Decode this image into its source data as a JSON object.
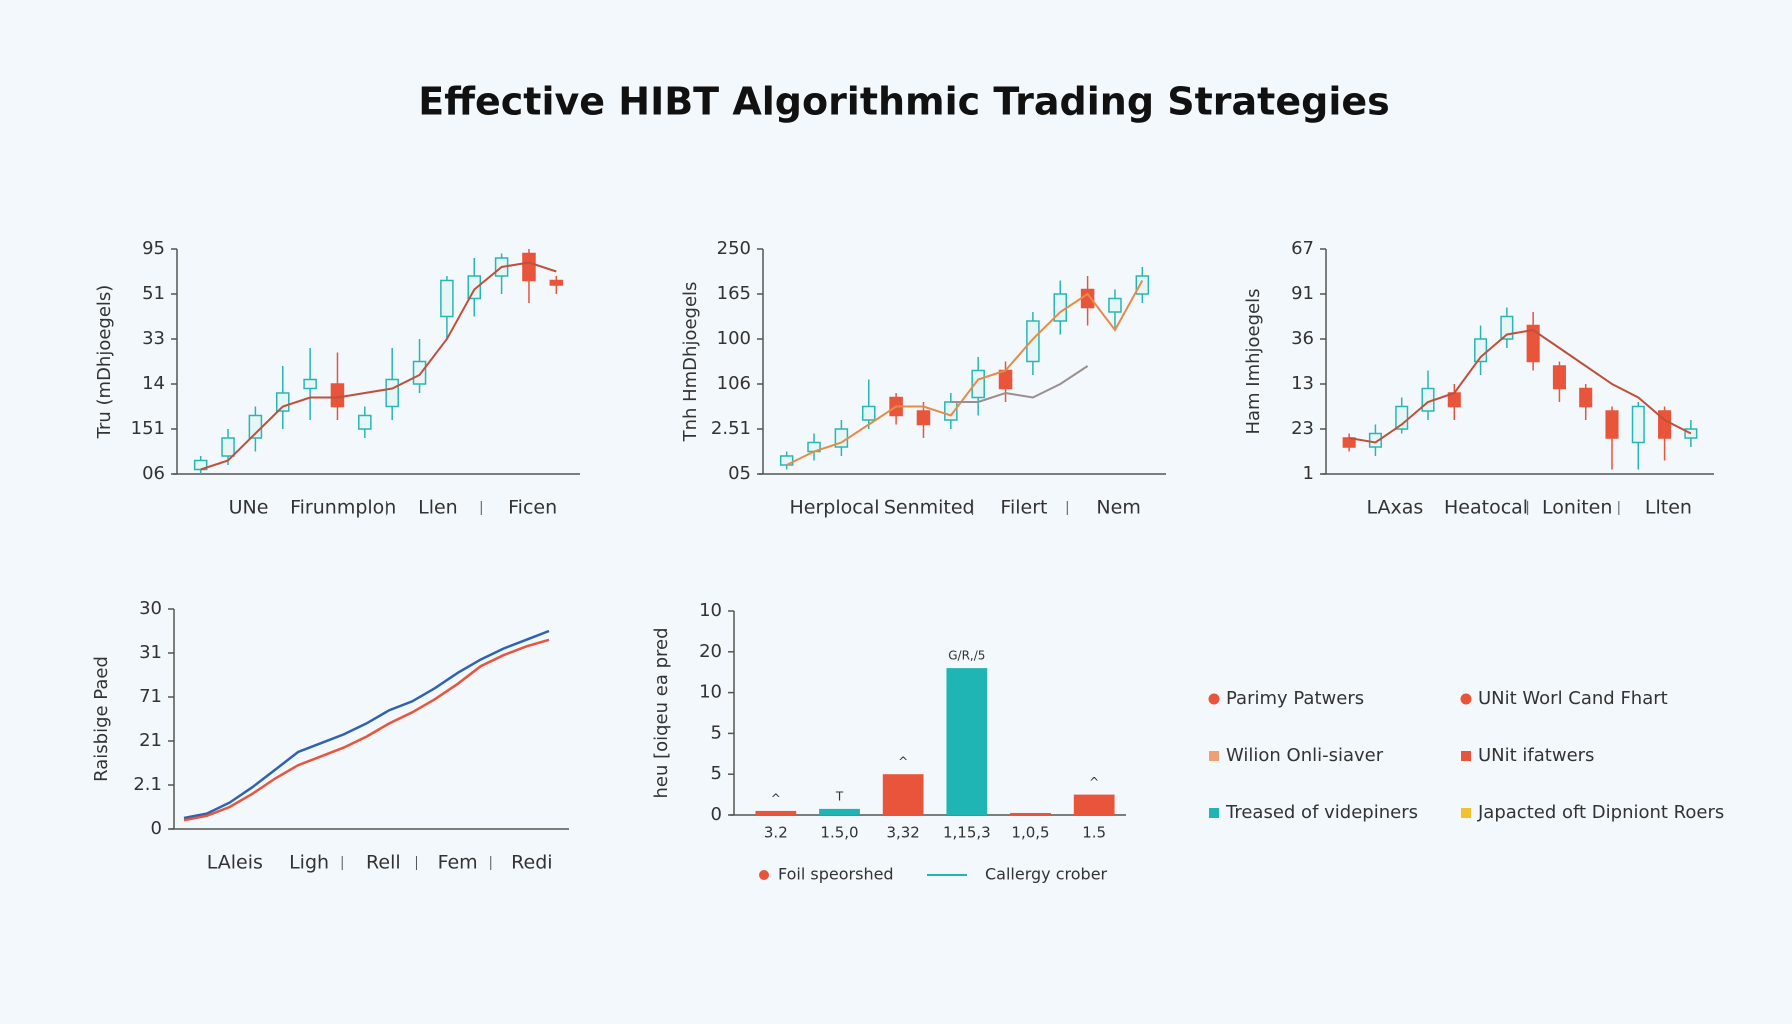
{
  "title": "Effective HIBT Algorithmic Trading Strategies",
  "chart_data": [
    {
      "type": "candlestick",
      "ylabel": "Tru (mDhjoegels)",
      "x_labels": [
        "UNe",
        "Firunmplon",
        "Llen",
        "Ficen"
      ],
      "ylim": [
        0,
        5
      ],
      "yticks": [
        {
          "value": 0,
          "label": "06"
        },
        {
          "value": 1,
          "label": "151"
        },
        {
          "value": 2,
          "label": "14"
        },
        {
          "value": 3,
          "label": "33"
        },
        {
          "value": 4,
          "label": "51"
        },
        {
          "value": 5,
          "label": "95"
        }
      ],
      "up_color": "#2ab5b5",
      "down_color": "#e8553a",
      "open": [
        0.1,
        0.4,
        0.8,
        1.4,
        1.9,
        2.0,
        1.0,
        1.5,
        2.0,
        3.5,
        3.9,
        4.4,
        4.9,
        4.3
      ],
      "close": [
        0.3,
        0.8,
        1.3,
        1.8,
        2.1,
        1.5,
        1.3,
        2.1,
        2.5,
        4.3,
        4.4,
        4.8,
        4.3,
        4.2
      ],
      "high": [
        0.4,
        1.0,
        1.5,
        2.4,
        2.8,
        2.7,
        1.5,
        2.8,
        3.0,
        4.4,
        4.8,
        4.9,
        5.0,
        4.4
      ],
      "low": [
        0.0,
        0.2,
        0.5,
        1.0,
        1.2,
        1.2,
        0.8,
        1.2,
        1.8,
        3.0,
        3.5,
        4.0,
        3.8,
        4.0
      ],
      "series": [
        {
          "color": "#c0503a",
          "values": [
            0.1,
            0.3,
            0.9,
            1.5,
            1.7,
            1.7,
            1.8,
            1.9,
            2.2,
            3.0,
            4.1,
            4.6,
            4.7,
            4.5
          ]
        }
      ]
    },
    {
      "type": "candlestick",
      "ylabel": "Tnh HmDhjoegels",
      "x_labels": [
        "Herplocal",
        "Senmited",
        "Filert",
        "Nem"
      ],
      "ylim": [
        0,
        5
      ],
      "yticks": [
        {
          "value": 0,
          "label": "05"
        },
        {
          "value": 1,
          "label": "2.51"
        },
        {
          "value": 2,
          "label": "106"
        },
        {
          "value": 3,
          "label": "100"
        },
        {
          "value": 4,
          "label": "165"
        },
        {
          "value": 5,
          "label": "250"
        }
      ],
      "up_color": "#2ab5b5",
      "down_color": "#e8553a",
      "open": [
        0.2,
        0.5,
        0.6,
        1.2,
        1.7,
        1.4,
        1.2,
        1.7,
        2.3,
        2.5,
        3.4,
        4.1,
        3.6,
        4.0
      ],
      "close": [
        0.4,
        0.7,
        1.0,
        1.5,
        1.3,
        1.1,
        1.6,
        2.3,
        1.9,
        3.4,
        4.0,
        3.7,
        3.9,
        4.4
      ],
      "high": [
        0.5,
        0.9,
        1.2,
        2.1,
        1.8,
        1.6,
        1.8,
        2.6,
        2.5,
        3.6,
        4.3,
        4.4,
        4.1,
        4.6
      ],
      "low": [
        0.1,
        0.3,
        0.4,
        1.0,
        1.1,
        0.8,
        1.0,
        1.3,
        1.6,
        2.2,
        3.1,
        3.3,
        3.2,
        3.8
      ],
      "series": [
        {
          "color": "#e88a4a",
          "values": [
            0.2,
            0.5,
            0.7,
            1.1,
            1.5,
            1.5,
            1.3,
            2.1,
            2.3,
            3.0,
            3.6,
            4.0,
            3.2,
            4.3
          ]
        },
        {
          "color": "#9a8e8e",
          "values": [
            null,
            null,
            null,
            null,
            null,
            null,
            1.6,
            1.6,
            1.8,
            1.7,
            2.0,
            2.4,
            null,
            null
          ]
        }
      ]
    },
    {
      "type": "candlestick",
      "ylabel": "Ham Imhjoegels",
      "x_labels": [
        "LAxas",
        "Heatocal",
        "Loniten",
        "Llten"
      ],
      "ylim": [
        0,
        5
      ],
      "yticks": [
        {
          "value": 0,
          "label": "1"
        },
        {
          "value": 1,
          "label": "23"
        },
        {
          "value": 2,
          "label": "13"
        },
        {
          "value": 3,
          "label": "36"
        },
        {
          "value": 4,
          "label": "91"
        },
        {
          "value": 5,
          "label": "67"
        }
      ],
      "up_color": "#2ab5b5",
      "down_color": "#e8553a",
      "open": [
        0.8,
        0.6,
        1.0,
        1.4,
        1.8,
        2.5,
        3.0,
        3.3,
        2.4,
        1.9,
        1.4,
        0.7,
        1.4,
        0.8
      ],
      "close": [
        0.6,
        0.9,
        1.5,
        1.9,
        1.5,
        3.0,
        3.5,
        2.5,
        1.9,
        1.5,
        0.8,
        1.5,
        0.8,
        1.0
      ],
      "high": [
        0.9,
        1.1,
        1.7,
        2.3,
        2.0,
        3.3,
        3.7,
        3.6,
        2.5,
        2.0,
        1.5,
        1.6,
        1.5,
        1.2
      ],
      "low": [
        0.5,
        0.4,
        0.9,
        1.2,
        1.2,
        2.2,
        2.8,
        2.3,
        1.6,
        1.2,
        0.1,
        0.1,
        0.3,
        0.6
      ],
      "series": [
        {
          "color": "#c0503a",
          "values": [
            0.8,
            0.7,
            1.1,
            1.6,
            1.8,
            2.6,
            3.1,
            3.2,
            2.8,
            2.4,
            2.0,
            1.7,
            1.2,
            0.9
          ]
        }
      ]
    },
    {
      "type": "line",
      "ylabel": "Raisbige Paed",
      "x_labels": [
        "LAleis",
        "Ligh",
        "Rell",
        "Fem",
        "Redi"
      ],
      "ylim": [
        0,
        5
      ],
      "yticks": [
        0,
        {
          "value": 1,
          "label": "2.1"
        },
        {
          "value": 2,
          "label": "21"
        },
        {
          "value": 3,
          "label": "71"
        },
        {
          "value": 4,
          "label": "31"
        },
        {
          "value": 5,
          "label": "30"
        }
      ],
      "series": [
        {
          "color": "#2f62b0",
          "values": [
            0.25,
            0.35,
            0.6,
            0.95,
            1.35,
            1.75,
            1.95,
            2.15,
            2.4,
            2.7,
            2.9,
            3.2,
            3.55,
            3.85,
            4.1,
            4.3,
            4.5
          ]
        },
        {
          "color": "#e8553a",
          "values": [
            0.2,
            0.3,
            0.5,
            0.8,
            1.15,
            1.45,
            1.65,
            1.85,
            2.1,
            2.4,
            2.65,
            2.95,
            3.3,
            3.7,
            3.95,
            4.15,
            4.3
          ]
        }
      ]
    },
    {
      "type": "bar",
      "ylabel": "heu [oiqeu ea pred",
      "categories": [
        "3.2",
        "1.5,0",
        "3,32",
        "1,15,3",
        "1,0,5",
        "1.5"
      ],
      "ylim": [
        0,
        5
      ],
      "yticks": [
        0,
        {
          "value": 1,
          "label": "5"
        },
        {
          "value": 2,
          "label": "5"
        },
        {
          "value": 3,
          "label": "10"
        },
        {
          "value": 4,
          "label": "20"
        },
        {
          "value": 5,
          "label": "10"
        }
      ],
      "values": [
        0.1,
        0.15,
        1.0,
        3.6,
        0.05,
        0.5
      ],
      "colors": [
        "#e8553a",
        "#1fb5b5",
        "#e8553a",
        "#1fb5b5",
        "#e8553a",
        "#e8553a"
      ],
      "bar_annotations": [
        "^",
        "T",
        "^",
        "G/R,/5",
        null,
        "^"
      ],
      "legend": [
        {
          "label": "Foil speorshed",
          "color": "#e8553a",
          "marker": "dot"
        },
        {
          "label": "Callergy crober",
          "color": "#1fb5b5",
          "marker": "line"
        }
      ]
    }
  ],
  "legend": [
    {
      "label": "Parimy Patwers",
      "color": "#e8553a",
      "marker": "dot"
    },
    {
      "label": "UNit Worl Cand Fhart",
      "color": "#e8553a",
      "marker": "dot"
    },
    {
      "label": "Wilion Onli-siaver",
      "color": "#f0a070",
      "marker": "square"
    },
    {
      "label": "UNit ifatwers",
      "color": "#e8553a",
      "marker": "square"
    },
    {
      "label": "Treased of videpiners",
      "color": "#1fb5b5",
      "marker": "square"
    },
    {
      "label": "Japacted oft Dipniont Roers",
      "color": "#f2c12e",
      "marker": "square"
    }
  ]
}
